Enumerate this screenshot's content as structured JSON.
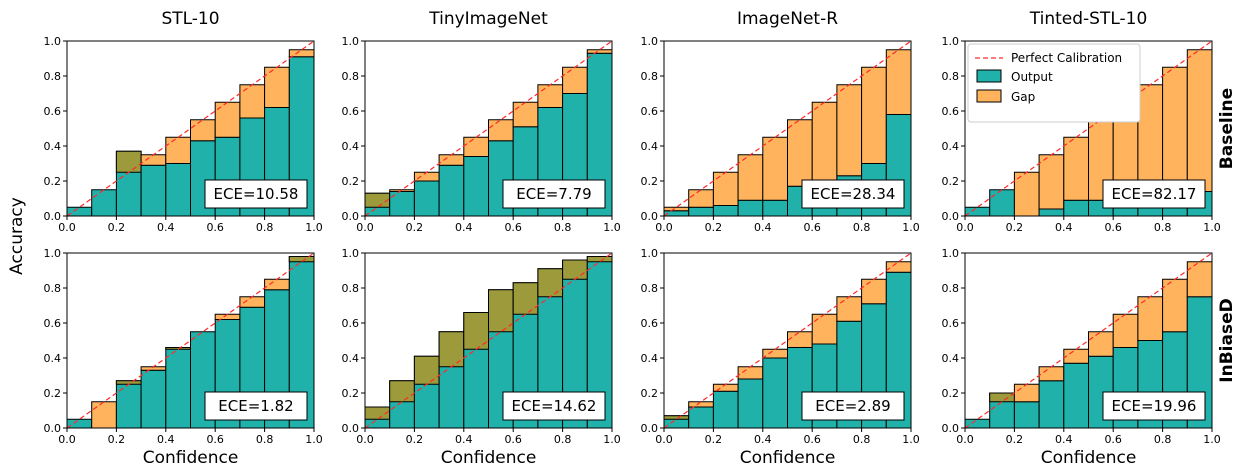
{
  "colors": {
    "output": "#20b2aa",
    "gap": "#ffb35c",
    "gap_below": "#9c9a3b",
    "perfect": "#ff2a2a",
    "edge": "#000000"
  },
  "row_labels": [
    "Baseline",
    "InBiaseD"
  ],
  "y_axis_label": "Accuracy",
  "x_axis_label": "Confidence",
  "legend": {
    "perfect": "Perfect Calibration",
    "output": "Output",
    "gap": "Gap"
  },
  "chart_data": [
    {
      "type": "bar",
      "title": "STL-10",
      "row": "Baseline",
      "ece": "ECE=10.58",
      "x": [
        0.05,
        0.15,
        0.25,
        0.35,
        0.45,
        0.55,
        0.65,
        0.75,
        0.85,
        0.95
      ],
      "output": [
        0.05,
        0.15,
        0.37,
        0.29,
        0.3,
        0.43,
        0.45,
        0.56,
        0.62,
        0.91
      ],
      "xlim": [
        0,
        1
      ],
      "ylim": [
        0,
        1
      ],
      "xticks": [
        "0.0",
        "0.2",
        "0.4",
        "0.6",
        "0.8",
        "1.0"
      ],
      "yticks": [
        "0.0",
        "0.2",
        "0.4",
        "0.6",
        "0.8",
        "1.0"
      ]
    },
    {
      "type": "bar",
      "title": "TinyImageNet",
      "row": "Baseline",
      "ece": "ECE=7.79",
      "x": [
        0.05,
        0.15,
        0.25,
        0.35,
        0.45,
        0.55,
        0.65,
        0.75,
        0.85,
        0.95
      ],
      "output": [
        0.13,
        0.14,
        0.2,
        0.29,
        0.34,
        0.43,
        0.51,
        0.62,
        0.7,
        0.93
      ],
      "xlim": [
        0,
        1
      ],
      "ylim": [
        0,
        1
      ],
      "xticks": [
        "0.0",
        "0.2",
        "0.4",
        "0.6",
        "0.8",
        "1.0"
      ],
      "yticks": [
        "0.0",
        "0.2",
        "0.4",
        "0.6",
        "0.8",
        "1.0"
      ]
    },
    {
      "type": "bar",
      "title": "ImageNet-R",
      "row": "Baseline",
      "ece": "ECE=28.34",
      "x": [
        0.05,
        0.15,
        0.25,
        0.35,
        0.45,
        0.55,
        0.65,
        0.75,
        0.85,
        0.95
      ],
      "output": [
        0.03,
        0.05,
        0.06,
        0.09,
        0.09,
        0.17,
        0.17,
        0.23,
        0.3,
        0.58
      ],
      "xlim": [
        0,
        1
      ],
      "ylim": [
        0,
        1
      ],
      "xticks": [
        "0.0",
        "0.2",
        "0.4",
        "0.6",
        "0.8",
        "1.0"
      ],
      "yticks": [
        "0.0",
        "0.2",
        "0.4",
        "0.6",
        "0.8",
        "1.0"
      ]
    },
    {
      "type": "bar",
      "title": "Tinted-STL-10",
      "row": "Baseline",
      "ece": "ECE=82.17",
      "x": [
        0.05,
        0.15,
        0.25,
        0.35,
        0.45,
        0.55,
        0.65,
        0.75,
        0.85,
        0.95
      ],
      "output": [
        0.05,
        0.15,
        0.0,
        0.04,
        0.09,
        0.09,
        0.1,
        0.11,
        0.12,
        0.14
      ],
      "xlim": [
        0,
        1
      ],
      "ylim": [
        0,
        1
      ],
      "xticks": [
        "0.0",
        "0.2",
        "0.4",
        "0.6",
        "0.8",
        "1.0"
      ],
      "yticks": [
        "0.0",
        "0.2",
        "0.4",
        "0.6",
        "0.8",
        "1.0"
      ],
      "legend": true
    },
    {
      "type": "bar",
      "title": "STL-10",
      "row": "InBiaseD",
      "ece": "ECE=1.82",
      "x": [
        0.05,
        0.15,
        0.25,
        0.35,
        0.45,
        0.55,
        0.65,
        0.75,
        0.85,
        0.95
      ],
      "output": [
        0.05,
        0.0,
        0.27,
        0.33,
        0.46,
        0.55,
        0.62,
        0.69,
        0.79,
        0.98
      ],
      "xlim": [
        0,
        1
      ],
      "ylim": [
        0,
        1
      ],
      "xticks": [
        "0.0",
        "0.2",
        "0.4",
        "0.6",
        "0.8",
        "1.0"
      ],
      "yticks": [
        "0.0",
        "0.2",
        "0.4",
        "0.6",
        "0.8",
        "1.0"
      ]
    },
    {
      "type": "bar",
      "title": "TinyImageNet",
      "row": "InBiaseD",
      "ece": "ECE=14.62",
      "x": [
        0.05,
        0.15,
        0.25,
        0.35,
        0.45,
        0.55,
        0.65,
        0.75,
        0.85,
        0.95
      ],
      "output": [
        0.12,
        0.27,
        0.41,
        0.55,
        0.66,
        0.79,
        0.83,
        0.91,
        0.96,
        0.98
      ],
      "xlim": [
        0,
        1
      ],
      "ylim": [
        0,
        1
      ],
      "xticks": [
        "0.0",
        "0.2",
        "0.4",
        "0.6",
        "0.8",
        "1.0"
      ],
      "yticks": [
        "0.0",
        "0.2",
        "0.4",
        "0.6",
        "0.8",
        "1.0"
      ]
    },
    {
      "type": "bar",
      "title": "ImageNet-R",
      "row": "InBiaseD",
      "ece": "ECE=2.89",
      "x": [
        0.05,
        0.15,
        0.25,
        0.35,
        0.45,
        0.55,
        0.65,
        0.75,
        0.85,
        0.95
      ],
      "output": [
        0.07,
        0.12,
        0.21,
        0.28,
        0.4,
        0.46,
        0.48,
        0.61,
        0.71,
        0.89
      ],
      "xlim": [
        0,
        1
      ],
      "ylim": [
        0,
        1
      ],
      "xticks": [
        "0.0",
        "0.2",
        "0.4",
        "0.6",
        "0.8",
        "1.0"
      ],
      "yticks": [
        "0.0",
        "0.2",
        "0.4",
        "0.6",
        "0.8",
        "1.0"
      ]
    },
    {
      "type": "bar",
      "title": "Tinted-STL-10",
      "row": "InBiaseD",
      "ece": "ECE=19.96",
      "x": [
        0.05,
        0.15,
        0.25,
        0.35,
        0.45,
        0.55,
        0.65,
        0.75,
        0.85,
        0.95
      ],
      "output": [
        0.05,
        0.2,
        0.15,
        0.27,
        0.37,
        0.41,
        0.46,
        0.5,
        0.55,
        0.75
      ],
      "xlim": [
        0,
        1
      ],
      "ylim": [
        0,
        1
      ],
      "xticks": [
        "0.0",
        "0.2",
        "0.4",
        "0.6",
        "0.8",
        "1.0"
      ],
      "yticks": [
        "0.0",
        "0.2",
        "0.4",
        "0.6",
        "0.8",
        "1.0"
      ]
    }
  ]
}
